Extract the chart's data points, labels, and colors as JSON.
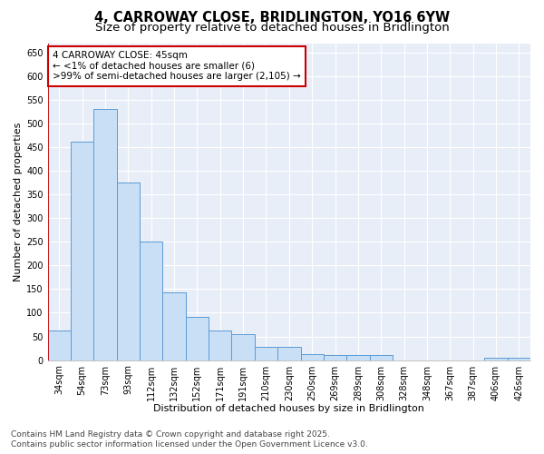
{
  "title": "4, CARROWAY CLOSE, BRIDLINGTON, YO16 6YW",
  "subtitle": "Size of property relative to detached houses in Bridlington",
  "xlabel": "Distribution of detached houses by size in Bridlington",
  "ylabel": "Number of detached properties",
  "footer_line1": "Contains HM Land Registry data © Crown copyright and database right 2025.",
  "footer_line2": "Contains public sector information licensed under the Open Government Licence v3.0.",
  "categories": [
    "34sqm",
    "54sqm",
    "73sqm",
    "93sqm",
    "112sqm",
    "132sqm",
    "152sqm",
    "171sqm",
    "191sqm",
    "210sqm",
    "230sqm",
    "250sqm",
    "269sqm",
    "289sqm",
    "308sqm",
    "328sqm",
    "348sqm",
    "367sqm",
    "387sqm",
    "406sqm",
    "426sqm"
  ],
  "values": [
    63,
    462,
    530,
    375,
    250,
    143,
    92,
    63,
    55,
    28,
    28,
    12,
    10,
    10,
    10,
    0,
    0,
    0,
    0,
    5,
    5
  ],
  "bar_color": "#c9dff5",
  "bar_edge_color": "#5b9bd5",
  "annotation_line1": "4 CARROWAY CLOSE: 45sqm",
  "annotation_line2": "← <1% of detached houses are smaller (6)",
  "annotation_line3": ">99% of semi-detached houses are larger (2,105) →",
  "annotation_box_color": "#ffffff",
  "annotation_box_edge": "#cc0000",
  "property_line_color": "#cc0000",
  "ylim": [
    0,
    670
  ],
  "yticks": [
    0,
    50,
    100,
    150,
    200,
    250,
    300,
    350,
    400,
    450,
    500,
    550,
    600,
    650
  ],
  "bg_color": "#ffffff",
  "plot_bg_color": "#e8eef8",
  "grid_color": "#ffffff",
  "title_fontsize": 10.5,
  "subtitle_fontsize": 9.5,
  "axis_label_fontsize": 8,
  "tick_fontsize": 7,
  "annotation_fontsize": 7.5,
  "footer_fontsize": 6.5
}
